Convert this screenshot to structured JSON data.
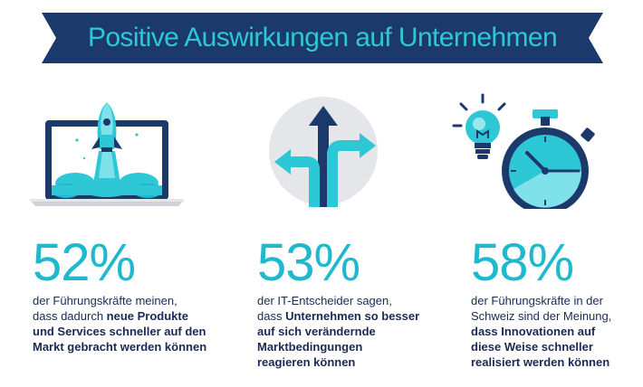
{
  "banner": {
    "title": "Positive Auswirkungen auf Unternehmen"
  },
  "colors": {
    "navy": "#1b3a6b",
    "cyan": "#2ec7d6",
    "cyan_dark": "#1fb8cc",
    "text": "#1a2a55"
  },
  "stats": [
    {
      "icon": "laptop-rocket-icon",
      "percent": "52%",
      "lines": [
        {
          "normal": "der Führungskräfte meinen,",
          "bold": ""
        },
        {
          "normal": "dass dadurch ",
          "bold": "neue Produkte"
        },
        {
          "normal": "",
          "bold": "und Services schneller auf den"
        },
        {
          "normal": "",
          "bold": "Markt gebracht werden können"
        }
      ]
    },
    {
      "icon": "direction-arrows-icon",
      "percent": "53%",
      "lines": [
        {
          "normal": "der IT-Entscheider sagen,",
          "bold": ""
        },
        {
          "normal": "dass ",
          "bold": "Unternehmen so besser"
        },
        {
          "normal": "",
          "bold": "auf sich verändernde"
        },
        {
          "normal": "",
          "bold": "Marktbedingungen"
        },
        {
          "normal": "",
          "bold": "reagieren können"
        }
      ]
    },
    {
      "icon": "lightbulb-stopwatch-icon",
      "percent": "58%",
      "lines": [
        {
          "normal": "der Führungskräfte in der",
          "bold": ""
        },
        {
          "normal": "Schweiz sind der Meinung,",
          "bold": ""
        },
        {
          "normal": "",
          "bold": "dass Innovationen auf"
        },
        {
          "normal": "",
          "bold": "diese Weise schneller"
        },
        {
          "normal": "",
          "bold": "realisiert werden können"
        }
      ]
    }
  ]
}
